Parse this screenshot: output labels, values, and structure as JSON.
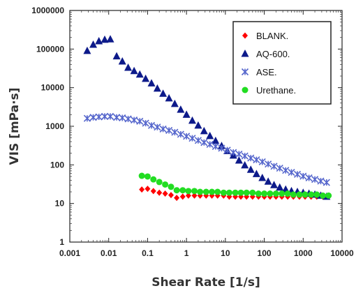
{
  "chart_data": {
    "type": "scatter",
    "title": "",
    "xlabel": "Shear Rate [1/s]",
    "ylabel": "VIS [mPa·s]",
    "x_scale": "log",
    "y_scale": "log",
    "xlim": [
      0.001,
      10000
    ],
    "ylim": [
      1,
      1000000
    ],
    "x_ticks": [
      "0.001",
      "0.01",
      "0.1",
      "1",
      "10",
      "100",
      "1000",
      "10000"
    ],
    "y_ticks": [
      "1000000",
      "100000",
      "10000",
      "1000",
      "100",
      "10",
      "1"
    ],
    "grid": false,
    "legend_position": "top-right",
    "series": [
      {
        "name": "BLANK.",
        "marker": "diamond",
        "color": "#ff0000",
        "x": [
          0.071,
          0.1,
          0.141,
          0.2,
          0.283,
          0.4,
          0.56,
          0.8,
          1.12,
          1.6,
          2.24,
          3.2,
          4.5,
          6.3,
          9,
          12.6,
          18,
          25,
          35,
          50,
          71,
          100,
          141,
          200,
          283,
          400,
          560,
          800,
          1120,
          1600,
          2240,
          3200,
          4500
        ],
        "y": [
          23,
          24,
          21,
          19,
          18,
          16.5,
          14,
          15,
          16,
          16,
          16,
          16,
          16,
          16,
          16,
          15,
          15,
          15,
          15,
          15,
          15,
          15,
          15,
          15,
          15,
          15,
          15,
          15,
          15,
          15,
          15,
          15,
          15
        ]
      },
      {
        "name": "AQ-600.",
        "marker": "triangle",
        "color": "#0d1a8a",
        "x": [
          0.0028,
          0.004,
          0.0056,
          0.0079,
          0.011,
          0.016,
          0.0224,
          0.0316,
          0.045,
          0.063,
          0.089,
          0.126,
          0.178,
          0.25,
          0.355,
          0.5,
          0.71,
          1,
          1.41,
          2,
          2.83,
          4,
          5.6,
          8,
          11.2,
          16,
          22.4,
          31.6,
          45,
          63,
          89,
          126,
          178,
          250,
          355,
          500,
          710,
          1000,
          1410,
          2000,
          2830,
          4000
        ],
        "y": [
          90000,
          130000,
          160000,
          175000,
          180000,
          65000,
          48000,
          33000,
          27000,
          22000,
          17000,
          13000,
          9500,
          7000,
          5300,
          3800,
          2700,
          2000,
          1400,
          1050,
          750,
          560,
          420,
          310,
          230,
          175,
          130,
          98,
          75,
          58,
          46,
          37,
          30,
          26,
          23,
          21,
          20,
          19,
          18,
          17,
          16,
          15
        ]
      },
      {
        "name": "ASE.",
        "marker": "asterisk",
        "color": "#5566cc",
        "x": [
          0.0028,
          0.004,
          0.0056,
          0.0079,
          0.011,
          0.016,
          0.0224,
          0.0316,
          0.045,
          0.063,
          0.089,
          0.126,
          0.178,
          0.25,
          0.355,
          0.5,
          0.71,
          1,
          1.41,
          2,
          2.83,
          4,
          5.6,
          8,
          11.2,
          16,
          22.4,
          31.6,
          45,
          63,
          89,
          126,
          178,
          250,
          355,
          500,
          710,
          1000,
          1410,
          2000,
          2830,
          4000
        ],
        "y": [
          1600,
          1700,
          1750,
          1800,
          1800,
          1700,
          1650,
          1550,
          1450,
          1350,
          1200,
          1050,
          950,
          850,
          780,
          700,
          620,
          550,
          490,
          430,
          380,
          340,
          300,
          270,
          240,
          210,
          190,
          170,
          150,
          135,
          120,
          105,
          92,
          82,
          72,
          64,
          57,
          51,
          46,
          42,
          38,
          35
        ]
      },
      {
        "name": "Urethane.",
        "marker": "circle",
        "color": "#22dd22",
        "x": [
          0.071,
          0.1,
          0.141,
          0.2,
          0.283,
          0.4,
          0.56,
          0.8,
          1.12,
          1.6,
          2.24,
          3.2,
          4.5,
          6.3,
          9,
          12.6,
          18,
          25,
          35,
          50,
          71,
          100,
          141,
          200,
          283,
          400,
          560,
          800,
          1120,
          1600,
          2240,
          3200,
          4500
        ],
        "y": [
          52,
          50,
          42,
          36,
          31,
          27,
          22,
          22,
          21,
          21,
          20,
          20,
          20,
          20,
          19,
          19,
          19,
          19,
          19,
          19,
          18,
          18,
          18,
          18,
          18,
          18,
          17,
          17,
          17,
          17,
          17,
          16,
          16
        ]
      }
    ]
  }
}
